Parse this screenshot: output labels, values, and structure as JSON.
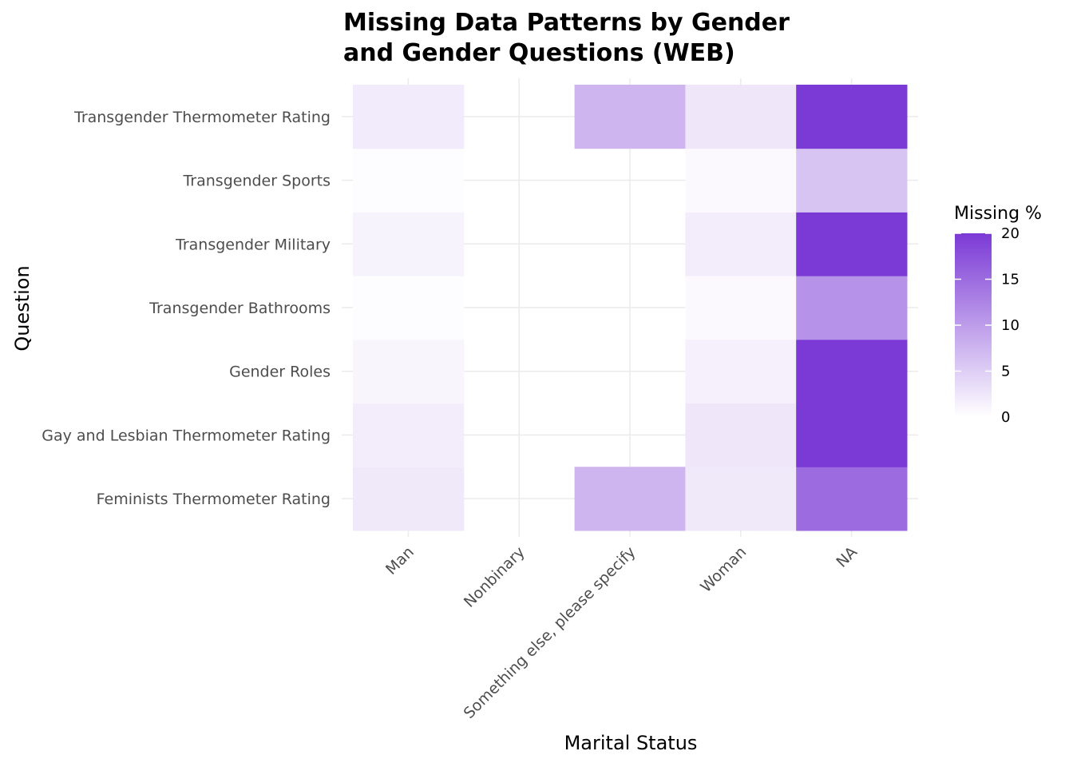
{
  "chart_data": {
    "type": "heatmap",
    "title": "Missing Data Patterns by Gender and Gender Questions (WEB)",
    "title_lines": [
      "Missing Data Patterns by Gender",
      "and Gender Questions (WEB)"
    ],
    "xlabel": "Marital Status",
    "ylabel": "Question",
    "x_categories": [
      "Man",
      "Nonbinary",
      "Something else, please specify",
      "Woman",
      "NA"
    ],
    "y_categories": [
      "Feminists Thermometer Rating",
      "Gay and Lesbian Thermometer Rating",
      "Gender Roles",
      "Transgender Bathrooms",
      "Transgender Military",
      "Transgender Sports",
      "Transgender Thermometer Rating"
    ],
    "values": [
      [
        2.2,
        null,
        7.5,
        2.2,
        15.0
      ],
      [
        1.8,
        null,
        null,
        2.5,
        20.0
      ],
      [
        1.0,
        null,
        null,
        1.5,
        20.0
      ],
      [
        0.3,
        null,
        null,
        0.6,
        11.0
      ],
      [
        1.2,
        null,
        null,
        1.8,
        20.0
      ],
      [
        0.3,
        null,
        null,
        0.6,
        6.0
      ],
      [
        2.0,
        null,
        7.5,
        2.5,
        20.0
      ]
    ],
    "legend": {
      "title": "Missing %",
      "ticks": [
        0,
        5,
        10,
        15,
        20
      ],
      "range": [
        0,
        20
      ],
      "low_color": "#ffffff",
      "high_color": "#7b3ad5",
      "placement": "right"
    }
  }
}
